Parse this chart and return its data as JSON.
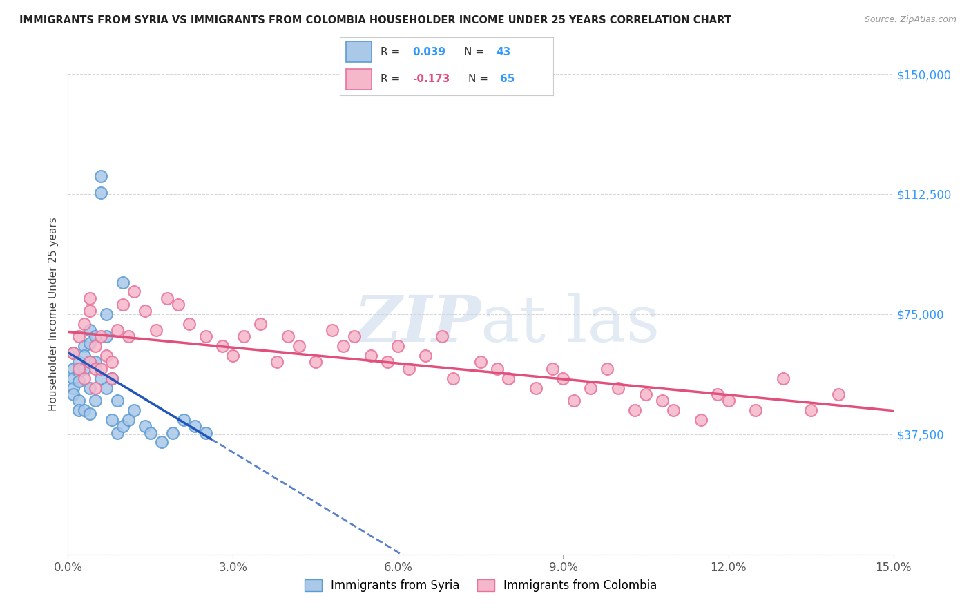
{
  "title": "IMMIGRANTS FROM SYRIA VS IMMIGRANTS FROM COLOMBIA HOUSEHOLDER INCOME UNDER 25 YEARS CORRELATION CHART",
  "source": "Source: ZipAtlas.com",
  "ylabel": "Householder Income Under 25 years",
  "xlim": [
    0.0,
    0.15
  ],
  "ylim": [
    0,
    150000
  ],
  "yticks": [
    0,
    37500,
    75000,
    112500,
    150000
  ],
  "ytick_labels": [
    "",
    "$37,500",
    "$75,000",
    "$112,500",
    "$150,000"
  ],
  "xtick_labels": [
    "0.0%",
    "3.0%",
    "6.0%",
    "9.0%",
    "12.0%",
    "15.0%"
  ],
  "xticks": [
    0.0,
    0.03,
    0.06,
    0.09,
    0.12,
    0.15
  ],
  "syria_color": "#aac8e8",
  "syria_edge_color": "#5b9bd5",
  "colombia_color": "#f5b8cb",
  "colombia_edge_color": "#e8729a",
  "syria_R": 0.039,
  "syria_N": 43,
  "colombia_R": -0.173,
  "colombia_N": 65,
  "legend_label_syria": "Immigrants from Syria",
  "legend_label_colombia": "Immigrants from Colombia",
  "background_color": "#ffffff",
  "grid_color": "#cccccc",
  "syria_line_color": "#2255bb",
  "colombia_line_color": "#e0507a",
  "watermark_color": "#c8d8ea"
}
